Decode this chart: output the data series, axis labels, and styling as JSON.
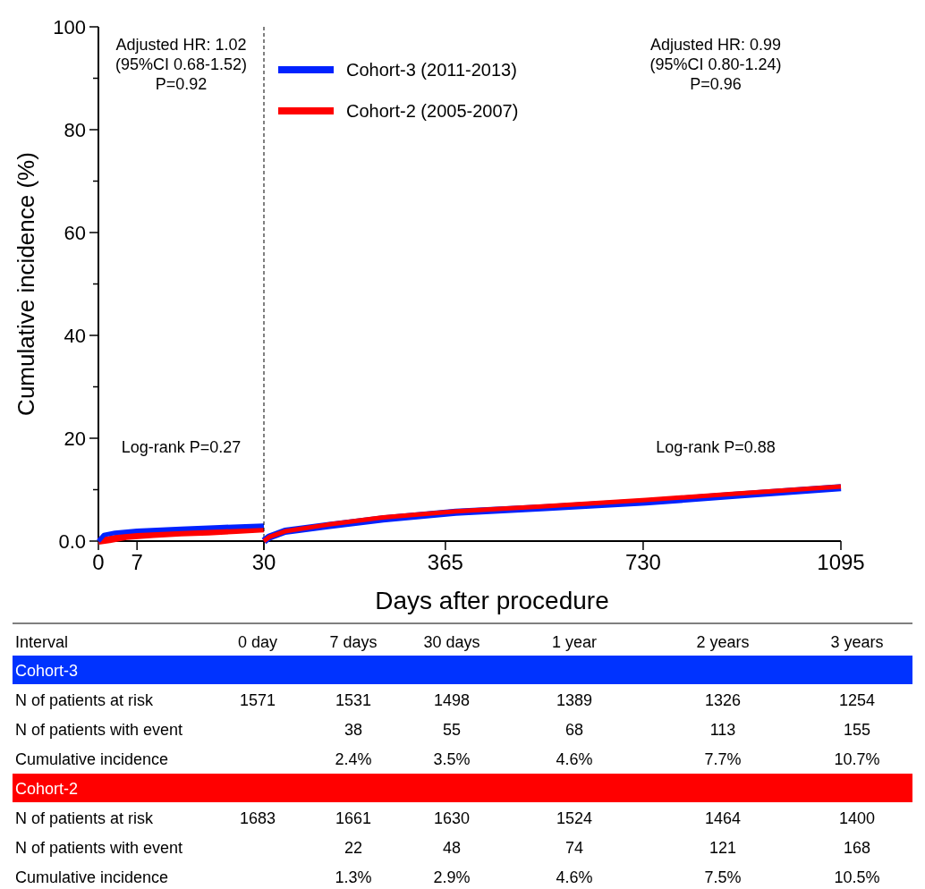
{
  "chart_data": [
    {
      "type": "line",
      "ylabel": "Cumulative incidence (%)",
      "xlim": [
        0,
        30
      ],
      "ylim": [
        0,
        100
      ],
      "xticks": [
        0,
        7,
        30
      ],
      "yticks": [
        {
          "value": 0,
          "label": "0.0"
        },
        {
          "value": 10,
          "label": null
        },
        20,
        {
          "value": 30,
          "label": null
        },
        40,
        {
          "value": 50,
          "label": null
        },
        60,
        {
          "value": 70,
          "label": null
        },
        80,
        {
          "value": 90,
          "label": null
        },
        100
      ],
      "annotations": [
        "Adjusted HR: 1.02\n(95%CI 0.68-1.52)\nP=0.92",
        "Log-rank P=0.27"
      ],
      "series": [
        {
          "color": "#ff0000",
          "x": [
            0,
            2,
            5,
            10,
            15,
            20,
            25,
            30
          ],
          "values": [
            0,
            0.3,
            0.9,
            1.3,
            1.6,
            1.8,
            2.1,
            2.4
          ]
        },
        {
          "color": "#0022ff",
          "x": [
            0,
            1,
            3,
            7,
            15,
            22,
            30
          ],
          "values": [
            0,
            1.2,
            1.6,
            2.0,
            2.4,
            2.7,
            3.0
          ]
        }
      ]
    },
    {
      "type": "line",
      "xlabel": "Days after procedure",
      "xlim": [
        30,
        1095
      ],
      "ylim": [
        0,
        100
      ],
      "xticks": [
        {
          "value": 30,
          "label": null
        },
        365,
        730,
        1095
      ],
      "tick_labels": "x",
      "legend": "top left",
      "annotations": [
        "Adjusted HR: 0.99\n(95%CI 0.80-1.24)\nP=0.96",
        "Log-rank P=0.88"
      ],
      "series": [
        {
          "name": "Cohort-3 (2011-2013)",
          "color": "#0022ff",
          "x": [
            30,
            40,
            69,
            148,
            250,
            384,
            550,
            735,
            900,
            1095
          ],
          "values": [
            0,
            0.8,
            1.9,
            3.0,
            4.3,
            5.6,
            6.5,
            7.6,
            8.9,
            10.4
          ]
        },
        {
          "name": "Cohort-2 (2005-2007)",
          "color": "#ff0000",
          "x": [
            30,
            40,
            69,
            148,
            250,
            384,
            550,
            735,
            900,
            1095
          ],
          "values": [
            0,
            0.8,
            1.9,
            3.2,
            4.6,
            5.8,
            6.8,
            8.0,
            9.2,
            10.6
          ]
        }
      ]
    },
    {
      "type": "other",
      "ylabel": "Interval",
      "categories": [
        "0 day",
        "7 days",
        "30 days",
        "1 year",
        "2 years",
        "3 years"
      ],
      "y_categories": [
        "Cohort-3",
        "N of patients at risk",
        "N of patients with event",
        "Cumulative incidence",
        "Cohort-2",
        "N of patients at risk",
        "N of patients with event",
        "Cumulative incidence"
      ],
      "colors": [
        "#0033ff",
        null,
        null,
        null,
        "#ff0000",
        null,
        null,
        null
      ],
      "cell_labels": [
        [
          null,
          null,
          null,
          null,
          null,
          null
        ],
        [
          "1571",
          "1531",
          "1498",
          "1389",
          "1326",
          "1254"
        ],
        [
          null,
          "38",
          "55",
          "68",
          "113",
          "155"
        ],
        [
          null,
          "2.4%",
          "3.5%",
          "4.6%",
          "7.7%",
          "10.7%"
        ],
        [
          null,
          null,
          null,
          null,
          null,
          null
        ],
        [
          "1683",
          "1661",
          "1630",
          "1524",
          "1464",
          "1400"
        ],
        [
          null,
          "22",
          "48",
          "74",
          "121",
          "168"
        ],
        [
          null,
          "1.3%",
          "2.9%",
          "4.6%",
          "7.5%",
          "10.5%"
        ]
      ]
    }
  ]
}
